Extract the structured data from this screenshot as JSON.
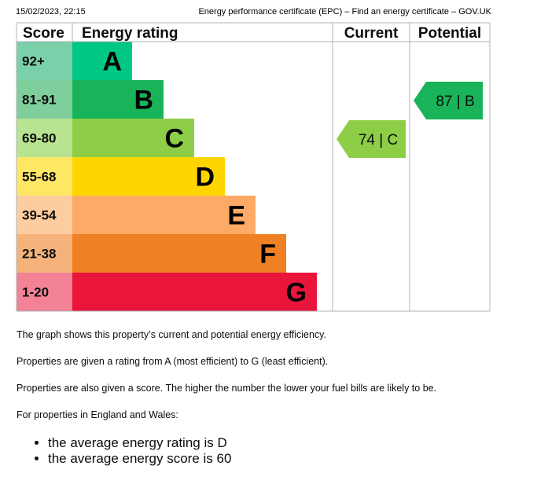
{
  "header": {
    "date": "15/02/2023, 22:15",
    "title": "Energy performance certificate (EPC) – Find an energy certificate – GOV.UK"
  },
  "chart_data": {
    "type": "bar",
    "columns": [
      "Score",
      "Energy rating",
      "Current",
      "Potential"
    ],
    "bands": [
      {
        "rating": "A",
        "score": "92+",
        "score_min": 92,
        "score_max": 100,
        "color": "#008054",
        "text_color": "#000000"
      },
      {
        "rating": "B",
        "score": "81-91",
        "score_min": 81,
        "score_max": 91,
        "color": "#19b459",
        "text_color": "#000000"
      },
      {
        "rating": "C",
        "score": "69-80",
        "score_min": 69,
        "score_max": 80,
        "color": "#8dce46",
        "text_color": "#000000"
      },
      {
        "rating": "D",
        "score": "55-68",
        "score_min": 55,
        "score_max": 68,
        "color": "#ffd500",
        "text_color": "#000000"
      },
      {
        "rating": "E",
        "score": "39-54",
        "score_min": 39,
        "score_max": 54,
        "color": "#fcaa65",
        "text_color": "#000000"
      },
      {
        "rating": "F",
        "score": "21-38",
        "score_min": 21,
        "score_max": 38,
        "color": "#ef8023",
        "text_color": "#000000"
      },
      {
        "rating": "G",
        "score": "1-20",
        "score_min": 1,
        "score_max": 20,
        "color": "#e9153b",
        "text_color": "#000000"
      }
    ],
    "current": {
      "score": 74,
      "rating": "C",
      "label": "74 | C"
    },
    "potential": {
      "score": 87,
      "rating": "B",
      "label": "87 | B"
    }
  },
  "text": {
    "p1": "The graph shows this property’s current and potential energy efficiency.",
    "p2": "Properties are given a rating from A (most efficient) to G (least efficient).",
    "p3": "Properties are also given a score. The higher the number the lower your fuel bills are likely to be.",
    "p4": "For properties in England and Wales:",
    "bullets": [
      "the average energy rating is D",
      "the average energy score is 60"
    ]
  }
}
